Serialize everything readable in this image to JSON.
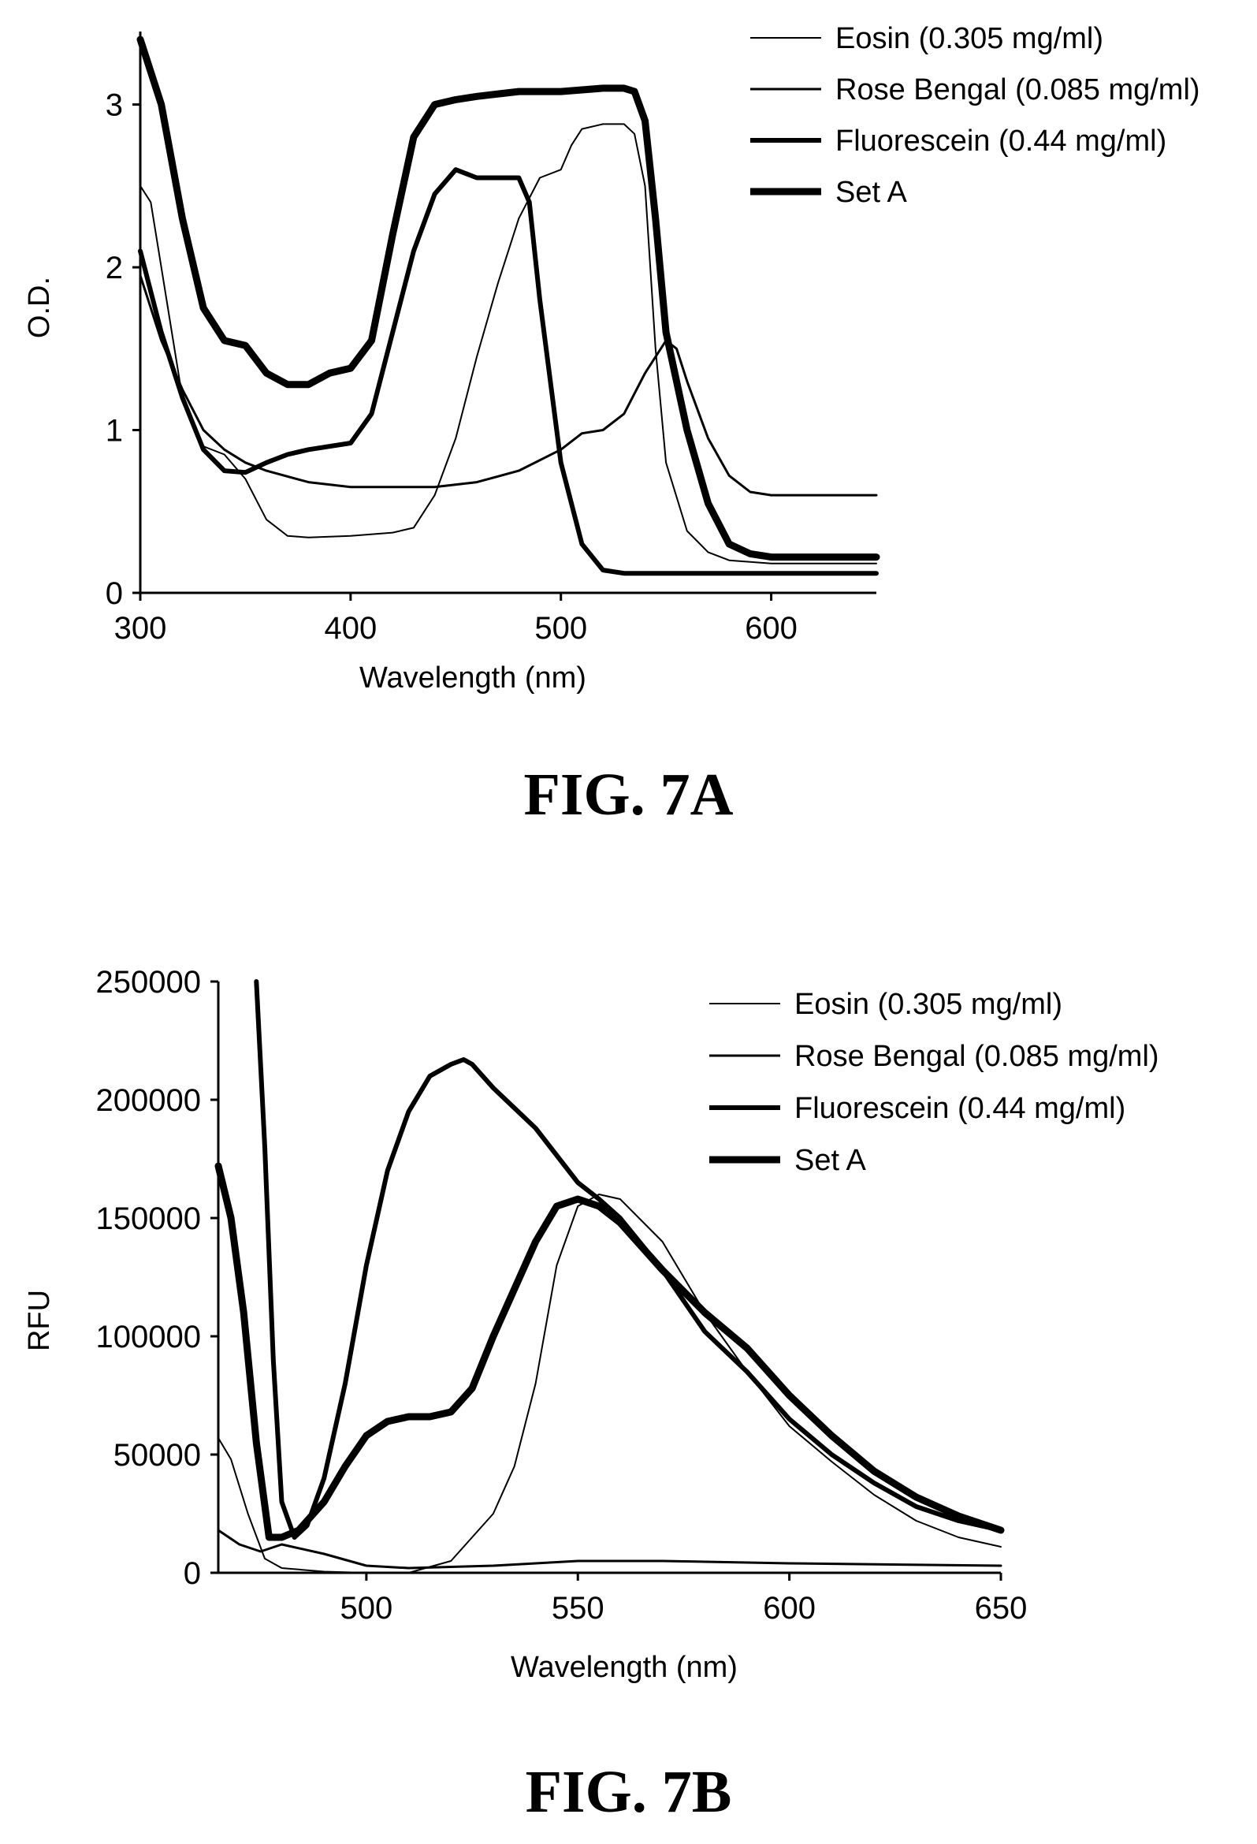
{
  "figures": [
    {
      "caption": "FIG. 7A"
    },
    {
      "caption": "FIG. 7B"
    }
  ],
  "chart_data": [
    {
      "type": "line",
      "title": "",
      "xlabel": "Wavelength (nm)",
      "ylabel": "O.D.",
      "xlim": [
        300,
        650
      ],
      "ylim": [
        0,
        3.4
      ],
      "x_ticks": [
        300,
        400,
        500,
        600
      ],
      "y_ticks": [
        0,
        1,
        2,
        3
      ],
      "legend_position": "top-right",
      "series": [
        {
          "name": "Eosin (0.305 mg/ml)",
          "stroke": 2,
          "x": [
            300,
            305,
            310,
            320,
            330,
            340,
            350,
            360,
            370,
            380,
            400,
            420,
            430,
            440,
            450,
            460,
            470,
            480,
            490,
            500,
            505,
            510,
            520,
            530,
            535,
            540,
            545,
            550,
            560,
            570,
            580,
            600,
            650
          ],
          "y": [
            2.5,
            2.4,
            2.0,
            1.2,
            0.9,
            0.85,
            0.7,
            0.45,
            0.35,
            0.34,
            0.35,
            0.37,
            0.4,
            0.6,
            0.95,
            1.45,
            1.9,
            2.3,
            2.55,
            2.6,
            2.75,
            2.85,
            2.88,
            2.88,
            2.82,
            2.5,
            1.5,
            0.8,
            0.38,
            0.25,
            0.2,
            0.18,
            0.18
          ]
        },
        {
          "name": "Rose Bengal (0.085 mg/ml)",
          "stroke": 3,
          "x": [
            300,
            310,
            320,
            330,
            340,
            350,
            360,
            380,
            400,
            420,
            440,
            460,
            480,
            500,
            510,
            520,
            530,
            540,
            550,
            555,
            560,
            570,
            580,
            590,
            600,
            650
          ],
          "y": [
            1.95,
            1.55,
            1.25,
            1.0,
            0.88,
            0.8,
            0.75,
            0.68,
            0.65,
            0.65,
            0.65,
            0.68,
            0.75,
            0.88,
            0.98,
            1.0,
            1.1,
            1.35,
            1.55,
            1.5,
            1.3,
            0.95,
            0.72,
            0.62,
            0.6,
            0.6
          ]
        },
        {
          "name": "Fluorescein (0.44 mg/ml)",
          "stroke": 6,
          "x": [
            300,
            310,
            320,
            330,
            340,
            350,
            360,
            370,
            380,
            400,
            410,
            420,
            430,
            440,
            450,
            460,
            470,
            480,
            485,
            490,
            500,
            510,
            520,
            530,
            540,
            560,
            600,
            650
          ],
          "y": [
            2.1,
            1.6,
            1.2,
            0.88,
            0.75,
            0.74,
            0.8,
            0.85,
            0.88,
            0.92,
            1.1,
            1.6,
            2.1,
            2.45,
            2.6,
            2.55,
            2.55,
            2.55,
            2.4,
            1.8,
            0.8,
            0.3,
            0.14,
            0.12,
            0.12,
            0.12,
            0.12,
            0.12
          ]
        },
        {
          "name": "Set A",
          "stroke": 9,
          "x": [
            300,
            310,
            320,
            330,
            340,
            350,
            360,
            370,
            380,
            390,
            400,
            410,
            420,
            430,
            440,
            450,
            460,
            480,
            500,
            520,
            530,
            535,
            540,
            545,
            550,
            560,
            570,
            580,
            590,
            600,
            650
          ],
          "y": [
            3.4,
            3.0,
            2.3,
            1.75,
            1.55,
            1.52,
            1.35,
            1.28,
            1.28,
            1.35,
            1.38,
            1.55,
            2.2,
            2.8,
            3.0,
            3.03,
            3.05,
            3.08,
            3.08,
            3.1,
            3.1,
            3.08,
            2.9,
            2.3,
            1.6,
            1.0,
            0.55,
            0.3,
            0.24,
            0.22,
            0.22
          ]
        }
      ]
    },
    {
      "type": "line",
      "title": "",
      "xlabel": "Wavelength (nm)",
      "ylabel": "RFU",
      "xlim": [
        465,
        650
      ],
      "ylim": [
        0,
        250000
      ],
      "x_ticks": [
        500,
        550,
        600,
        650
      ],
      "y_ticks": [
        0,
        50000,
        100000,
        150000,
        200000,
        250000
      ],
      "legend_position": "top-right",
      "series": [
        {
          "name": "Eosin (0.305 mg/ml)",
          "stroke": 2,
          "x": [
            465,
            468,
            472,
            476,
            480,
            490,
            500,
            510,
            520,
            530,
            535,
            540,
            545,
            550,
            555,
            560,
            570,
            580,
            590,
            600,
            610,
            620,
            630,
            640,
            650
          ],
          "y": [
            57000,
            48000,
            25000,
            6000,
            2000,
            500,
            0,
            0,
            5000,
            25000,
            45000,
            80000,
            130000,
            155000,
            160000,
            158000,
            140000,
            110000,
            85000,
            62000,
            47000,
            33000,
            22000,
            15000,
            11000
          ]
        },
        {
          "name": "Rose Bengal (0.085 mg/ml)",
          "stroke": 3,
          "x": [
            465,
            470,
            475,
            480,
            490,
            500,
            510,
            530,
            550,
            570,
            600,
            650
          ],
          "y": [
            18000,
            12000,
            9000,
            12000,
            8000,
            3000,
            2000,
            3000,
            5000,
            5000,
            4000,
            3000
          ]
        },
        {
          "name": "Fluorescein (0.44 mg/ml)",
          "stroke": 6,
          "x": [
            474,
            476,
            478,
            480,
            483,
            486,
            490,
            495,
            500,
            505,
            510,
            515,
            520,
            523,
            525,
            530,
            540,
            550,
            555,
            560,
            570,
            580,
            590,
            600,
            610,
            620,
            630,
            640,
            650
          ],
          "y": [
            250000,
            180000,
            90000,
            30000,
            15000,
            20000,
            40000,
            80000,
            130000,
            170000,
            195000,
            210000,
            215000,
            217000,
            215000,
            205000,
            188000,
            165000,
            158000,
            150000,
            128000,
            102000,
            85000,
            65000,
            50000,
            38000,
            28000,
            22000,
            18000
          ]
        },
        {
          "name": "Set A",
          "stroke": 9,
          "x": [
            465,
            468,
            471,
            474,
            477,
            480,
            484,
            490,
            495,
            500,
            505,
            510,
            515,
            520,
            525,
            530,
            540,
            545,
            550,
            555,
            560,
            570,
            580,
            590,
            600,
            610,
            620,
            630,
            640,
            650
          ],
          "y": [
            172000,
            150000,
            110000,
            55000,
            15000,
            15000,
            18000,
            30000,
            45000,
            58000,
            64000,
            66000,
            66000,
            68000,
            78000,
            100000,
            140000,
            155000,
            158000,
            155000,
            148000,
            128000,
            110000,
            95000,
            75000,
            58000,
            43000,
            32000,
            24000,
            18000
          ]
        }
      ]
    }
  ]
}
